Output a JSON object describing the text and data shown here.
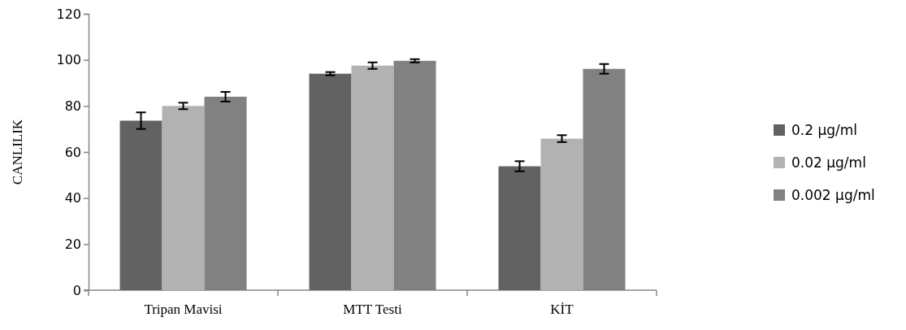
{
  "chart_data": {
    "type": "bar",
    "ylabel": "CANLILIK",
    "categories": [
      "Tripan Mavisi",
      "MTT Testi",
      "KİT"
    ],
    "series": [
      {
        "name": "0.2 µg/ml",
        "color": "#626262",
        "values": [
          73.6,
          94,
          53.8
        ],
        "errors": [
          3.6,
          0.7,
          2.2
        ]
      },
      {
        "name": "0.02 µg/ml",
        "color": "#b2b2b2",
        "values": [
          80,
          97.5,
          65.8
        ],
        "errors": [
          1.4,
          1.4,
          1.5
        ]
      },
      {
        "name": "0.002 µg/ml",
        "color": "#818181",
        "values": [
          84,
          99.6,
          96.1
        ],
        "errors": [
          2.1,
          0.7,
          2.1
        ]
      }
    ],
    "ylim": [
      0,
      120
    ],
    "yticks": [
      0,
      20,
      40,
      60,
      80,
      100,
      120
    ],
    "legend": "right"
  }
}
